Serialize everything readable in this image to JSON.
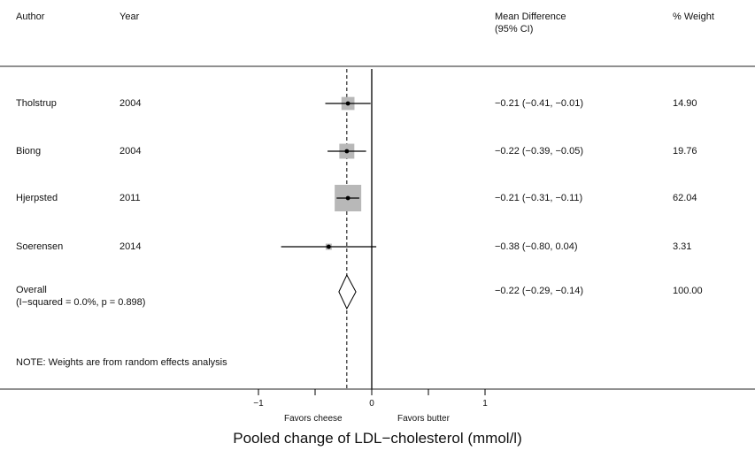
{
  "header": {
    "author": "Author",
    "year": "Year",
    "md_line1": "Mean Difference",
    "md_line2": "(95% CI)",
    "weight": "% Weight"
  },
  "overall": {
    "label": "Overall",
    "stats": "(I−squared = 0.0%, p = 0.898)",
    "ci_text": "−0.22 (−0.29, −0.14)",
    "weight": "100.00"
  },
  "note": "NOTE: Weights are from random effects analysis",
  "favors_left": "Favors cheese",
  "favors_right": "Favors butter",
  "chart_data": {
    "type": "forest",
    "xlabel": "Pooled change of LDL−cholesterol (mmol/l)",
    "xlim": [
      -2.0,
      3.4
    ],
    "xticks": [
      -1,
      0,
      1
    ],
    "xtick_labels": [
      "−1",
      "0",
      "1"
    ],
    "null_line": 0,
    "overall_line": -0.22,
    "studies": [
      {
        "author": "Tholstrup",
        "year": "2004",
        "md": -0.21,
        "lo": -0.41,
        "hi": -0.01,
        "ci_text": "−0.21 (−0.41, −0.01)",
        "weight": 14.9,
        "weight_text": "14.90"
      },
      {
        "author": "Biong",
        "year": "2004",
        "md": -0.22,
        "lo": -0.39,
        "hi": -0.05,
        "ci_text": "−0.22 (−0.39, −0.05)",
        "weight": 19.76,
        "weight_text": "19.76"
      },
      {
        "author": "Hjerpsted",
        "year": "2011",
        "md": -0.21,
        "lo": -0.31,
        "hi": -0.11,
        "ci_text": "−0.21 (−0.31, −0.11)",
        "weight": 62.04,
        "weight_text": "62.04"
      },
      {
        "author": "Soerensen",
        "year": "2014",
        "md": -0.38,
        "lo": -0.8,
        "hi": 0.04,
        "ci_text": "−0.38 (−0.80, 0.04)",
        "weight": 3.31,
        "weight_text": "3.31"
      }
    ],
    "pooled": {
      "md": -0.22,
      "lo": -0.29,
      "hi": -0.14
    }
  }
}
